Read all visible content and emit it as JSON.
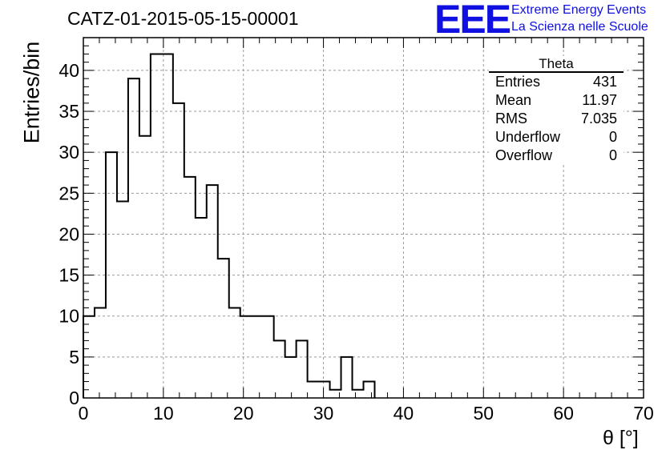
{
  "header": {
    "title": "CATZ-01-2015-05-15-00001",
    "logo": "EEE",
    "brand_line1": "Extreme Energy Events",
    "brand_line2": "La Scienza nelle Scuole"
  },
  "stats": {
    "title": "Theta",
    "rows": [
      {
        "label": "Entries",
        "value": "431"
      },
      {
        "label": "Mean",
        "value": "11.97"
      },
      {
        "label": "RMS",
        "value": "7.035"
      },
      {
        "label": "Underflow",
        "value": "0"
      },
      {
        "label": "Overflow",
        "value": "0"
      }
    ]
  },
  "chart_data": {
    "type": "bar",
    "style": "step-histogram",
    "title": "CATZ-01-2015-05-15-00001",
    "xlabel": "θ [°]",
    "ylabel": "Entries/bin",
    "xlim": [
      0,
      70
    ],
    "ylim": [
      0,
      44
    ],
    "xticks": [
      0,
      10,
      20,
      30,
      40,
      50,
      60,
      70
    ],
    "yticks": [
      0,
      5,
      10,
      15,
      20,
      25,
      30,
      35,
      40
    ],
    "grid": true,
    "bin_width": 1.4,
    "bin_start": 0,
    "values": [
      10,
      11,
      30,
      24,
      39,
      32,
      42,
      42,
      36,
      27,
      22,
      26,
      17,
      11,
      10,
      10,
      10,
      7,
      5,
      7,
      2,
      2,
      1,
      5,
      1,
      2
    ],
    "line_color": "#000000"
  }
}
